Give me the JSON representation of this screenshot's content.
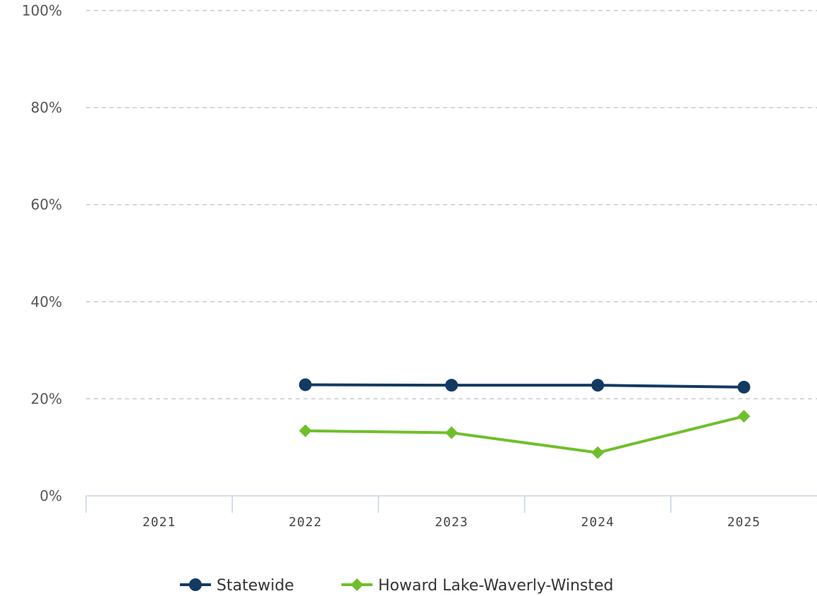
{
  "chart_data": {
    "type": "line",
    "categories": [
      "2021",
      "2022",
      "2023",
      "2024",
      "2025"
    ],
    "ylim": [
      0,
      100
    ],
    "yticks": [
      0,
      20,
      40,
      60,
      80,
      100
    ],
    "ytick_labels": [
      "0%",
      "20%",
      "40%",
      "60%",
      "80%",
      "100%"
    ],
    "grid": true,
    "legend_position": "bottom",
    "series": [
      {
        "name": "Statewide",
        "values": [
          null,
          22.9,
          22.8,
          22.8,
          22.4
        ],
        "color": "#123a63",
        "marker": "circle"
      },
      {
        "name": "Howard Lake-Waverly-Winsted",
        "values": [
          null,
          13.4,
          13.0,
          8.9,
          16.4
        ],
        "color": "#6fbf2b",
        "marker": "diamond"
      }
    ]
  }
}
